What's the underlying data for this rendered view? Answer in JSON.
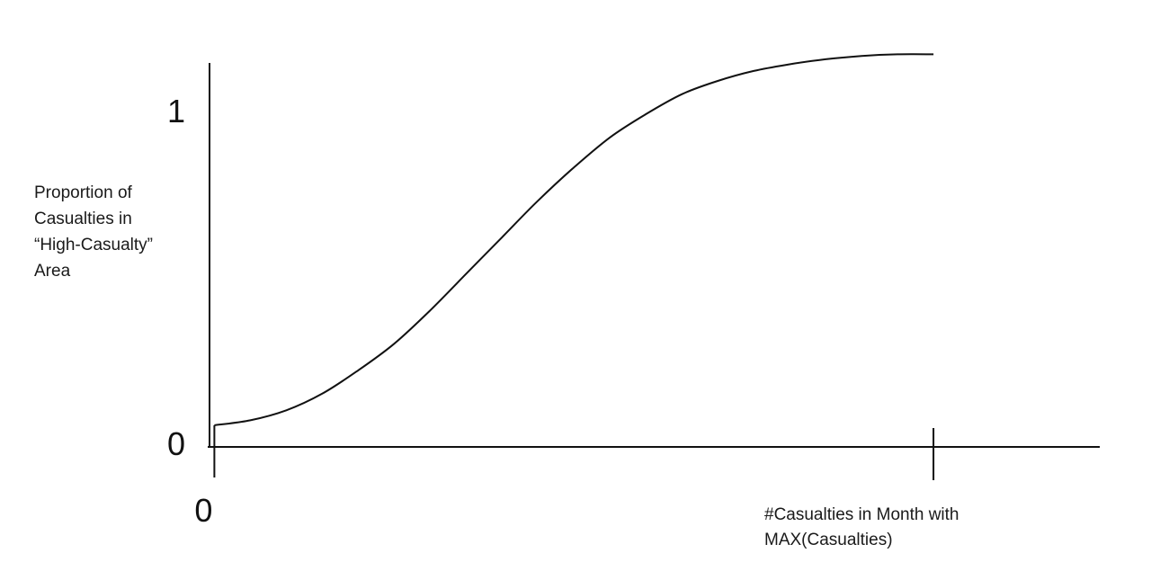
{
  "chart_data": {
    "type": "line",
    "title": "",
    "ylabel_lines": [
      "Proportion of",
      "Casualties in",
      "“High-Casualty”",
      "Area"
    ],
    "xlabel_lines": [
      "#Casualties in Month with",
      "MAX(Casualties)"
    ],
    "yticks": [
      {
        "value": 0,
        "label": "0"
      },
      {
        "value": 1,
        "label": "1"
      }
    ],
    "xticks": [
      {
        "value": 0,
        "label": "0"
      },
      {
        "value": 1,
        "label": ""
      }
    ],
    "xlim": [
      -0.023,
      1.24
    ],
    "ylim": [
      0,
      1.2
    ],
    "grid": false,
    "legend": "none",
    "series": [
      {
        "x": [
          0,
          0.05,
          0.1,
          0.15,
          0.2,
          0.25,
          0.3,
          0.35,
          0.4,
          0.45,
          0.5,
          0.55,
          0.6,
          0.65,
          0.7,
          0.75,
          0.8,
          0.85,
          0.9,
          0.95,
          1.0
        ],
        "y": [
          0.065,
          0.08,
          0.11,
          0.16,
          0.23,
          0.31,
          0.41,
          0.52,
          0.63,
          0.74,
          0.84,
          0.93,
          1.0,
          1.06,
          1.1,
          1.13,
          1.15,
          1.165,
          1.175,
          1.18,
          1.18
        ]
      }
    ],
    "line_color": "#111111",
    "axis_color": "#111111"
  }
}
